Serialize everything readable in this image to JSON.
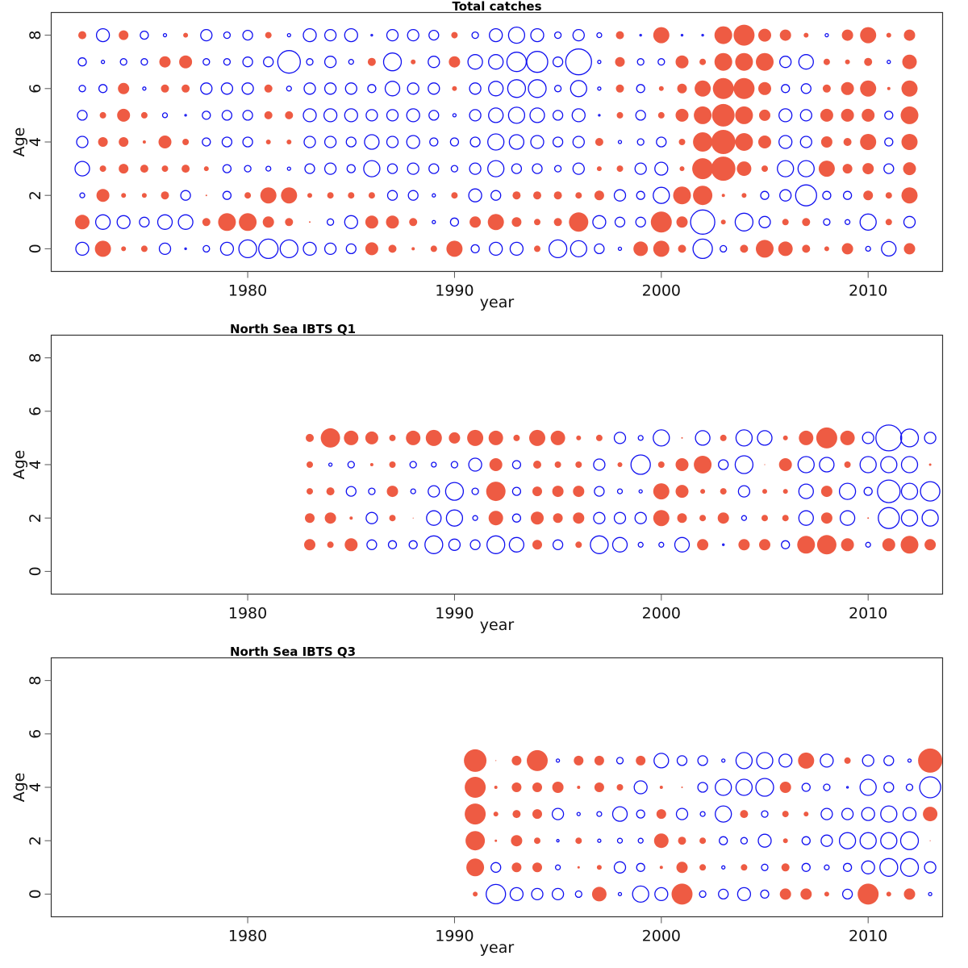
{
  "colors": {
    "positive": "#EE5B43",
    "negative": "#1010F0"
  },
  "chart_data": [
    {
      "type": "scatter",
      "subtype": "bubble",
      "title": "Total catches",
      "xlabel": "year",
      "ylabel": "Age",
      "xlim": [
        1970.5,
        2013.6
      ],
      "ylim": [
        -0.85,
        8.85
      ],
      "xticks": [
        1980,
        1990,
        2000,
        2010
      ],
      "yticks": [
        0,
        2,
        4,
        6,
        8
      ],
      "years": [
        1972,
        1973,
        1974,
        1975,
        1976,
        1977,
        1978,
        1979,
        1980,
        1981,
        1982,
        1983,
        1984,
        1985,
        1986,
        1987,
        1988,
        1989,
        1990,
        1991,
        1992,
        1993,
        1994,
        1995,
        1996,
        1997,
        1998,
        1999,
        2000,
        2001,
        2002,
        2003,
        2004,
        2005,
        2006,
        2007,
        2008,
        2009,
        2010,
        2011,
        2012
      ],
      "ages": [
        8,
        7,
        6,
        5,
        4,
        3,
        2,
        1,
        0
      ],
      "note": "signed residual magnitude; positive = filled red, negative = open blue",
      "values": [
        [
          5,
          -8,
          6,
          -5,
          -2,
          3,
          -7,
          -4,
          -6,
          4,
          -2,
          -8,
          -7,
          -8,
          -1,
          -7,
          -7,
          -6,
          4,
          -4,
          -8,
          -10,
          -8,
          -4,
          -7,
          -3,
          5,
          -1,
          10,
          -1,
          -1,
          11,
          13,
          8,
          7,
          3,
          -2,
          7,
          10,
          3,
          7
        ],
        [
          -5,
          -2,
          -4,
          -4,
          7,
          8,
          -4,
          -4,
          -6,
          -6,
          -14,
          -4,
          -7,
          -3,
          5,
          -11,
          3,
          -7,
          7,
          -9,
          -9,
          -12,
          -13,
          -6,
          -16,
          -2,
          6,
          -4,
          -4,
          8,
          4,
          11,
          11,
          11,
          -7,
          -9,
          4,
          3,
          5,
          -2,
          9
        ],
        [
          -4,
          -5,
          7,
          -2,
          5,
          5,
          -7,
          -7,
          -7,
          5,
          -3,
          -7,
          -7,
          -7,
          -5,
          -9,
          -7,
          -7,
          3,
          -7,
          -9,
          -11,
          -11,
          -4,
          -10,
          -2,
          5,
          -5,
          3,
          6,
          10,
          13,
          13,
          8,
          -5,
          -6,
          5,
          8,
          10,
          2,
          10
        ],
        [
          -6,
          4,
          8,
          4,
          -3,
          -1,
          -5,
          -6,
          -6,
          5,
          5,
          -8,
          -8,
          -8,
          -7,
          -7,
          -8,
          -6,
          -2,
          -7,
          -9,
          -10,
          -9,
          -6,
          -8,
          -1,
          4,
          -6,
          4,
          8,
          11,
          14,
          11,
          7,
          -8,
          -7,
          8,
          8,
          8,
          -5,
          11
        ],
        [
          -7,
          6,
          6,
          2,
          8,
          4,
          -5,
          -6,
          -6,
          3,
          3,
          -7,
          -7,
          -6,
          -9,
          -7,
          -8,
          -5,
          -5,
          -6,
          -10,
          -9,
          -8,
          -6,
          -7,
          5,
          -2,
          -4,
          -6,
          4,
          12,
          15,
          11,
          8,
          -8,
          -7,
          7,
          5,
          10,
          -5,
          10
        ],
        [
          -9,
          4,
          6,
          5,
          4,
          5,
          3,
          -5,
          -4,
          -3,
          -2,
          -6,
          -7,
          -5,
          -10,
          -6,
          -7,
          -6,
          -4,
          -7,
          -10,
          -6,
          -6,
          -4,
          -7,
          3,
          4,
          -7,
          -8,
          3,
          13,
          15,
          9,
          4,
          -10,
          -10,
          10,
          6,
          7,
          -6,
          8
        ],
        [
          -3,
          8,
          3,
          3,
          5,
          -6,
          1,
          -5,
          4,
          10,
          10,
          3,
          4,
          4,
          4,
          -6,
          -6,
          -2,
          4,
          -8,
          -6,
          5,
          5,
          5,
          4,
          6,
          -7,
          -5,
          -10,
          11,
          12,
          2,
          3,
          -5,
          -7,
          -13,
          -5,
          -5,
          6,
          4,
          10
        ],
        [
          9,
          -9,
          -8,
          -6,
          -9,
          -9,
          5,
          11,
          11,
          7,
          5,
          1,
          -4,
          -8,
          8,
          8,
          5,
          -2,
          -5,
          7,
          10,
          6,
          4,
          5,
          12,
          -8,
          -6,
          -6,
          13,
          7,
          -15,
          3,
          -11,
          -7,
          4,
          5,
          -4,
          -3,
          -10,
          4,
          -7
        ],
        [
          -8,
          10,
          3,
          4,
          -7,
          -1,
          -4,
          -8,
          -11,
          -12,
          -11,
          -8,
          -7,
          -6,
          8,
          5,
          2,
          4,
          10,
          -5,
          -8,
          -8,
          4,
          -11,
          -10,
          -6,
          -2,
          9,
          10,
          5,
          -12,
          -4,
          5,
          11,
          9,
          5,
          3,
          7,
          -3,
          -9,
          7
        ]
      ]
    },
    {
      "type": "scatter",
      "subtype": "bubble",
      "title": "North Sea IBTS Q1",
      "xlabel": "year",
      "ylabel": "Age",
      "xlim": [
        1970.5,
        2013.6
      ],
      "ylim": [
        -0.85,
        8.85
      ],
      "xticks": [
        1980,
        1990,
        2000,
        2010
      ],
      "yticks": [
        0,
        2,
        4,
        6,
        8
      ],
      "years": [
        1983,
        1984,
        1985,
        1986,
        1987,
        1988,
        1989,
        1990,
        1991,
        1992,
        1993,
        1994,
        1995,
        1996,
        1997,
        1998,
        1999,
        2000,
        2001,
        2002,
        2003,
        2004,
        2005,
        2006,
        2007,
        2008,
        2009,
        2010,
        2011,
        2012,
        2013
      ],
      "ages": [
        5,
        4,
        3,
        2,
        1
      ],
      "note": "signed residual magnitude; positive = filled red, negative = open blue",
      "values": [
        [
          5,
          12,
          9,
          8,
          4,
          9,
          10,
          7,
          10,
          9,
          4,
          10,
          9,
          3,
          4,
          -7,
          -3,
          -10,
          1,
          -9,
          4,
          -10,
          -9,
          3,
          9,
          13,
          9,
          -7,
          -16,
          -11,
          -7
        ],
        [
          4,
          -2,
          -4,
          2,
          4,
          -4,
          -3,
          -4,
          -8,
          8,
          -5,
          5,
          4,
          4,
          -7,
          3,
          -12,
          4,
          8,
          11,
          -6,
          -11,
          0.5,
          8,
          -10,
          -9,
          4,
          -10,
          -10,
          -10,
          1.5
        ],
        [
          4,
          5,
          -6,
          -4,
          7,
          -3,
          -7,
          -11,
          -4,
          12,
          -5,
          6,
          7,
          7,
          -6,
          -3,
          -2,
          10,
          8,
          3,
          4,
          -7,
          3,
          3,
          -9,
          7,
          -10,
          -5,
          -14,
          -10,
          -12
        ],
        [
          6,
          7,
          2,
          -7,
          4,
          0.5,
          -9,
          -10,
          -3,
          9,
          -5,
          8,
          6,
          7,
          -7,
          -7,
          -7,
          10,
          6,
          4,
          7,
          -3,
          4,
          4,
          -9,
          7,
          -9,
          1,
          -13,
          -10,
          -10
        ],
        [
          7,
          4,
          8,
          -6,
          -5,
          -5,
          -11,
          -7,
          -6,
          -11,
          -9,
          6,
          -6,
          4,
          -11,
          -9,
          -3,
          -3,
          -9,
          7,
          -1,
          7,
          7,
          -5,
          11,
          12,
          8,
          -3,
          8,
          11,
          7
        ]
      ]
    },
    {
      "type": "scatter",
      "subtype": "bubble",
      "title": "North Sea IBTS Q3",
      "xlabel": "year",
      "ylabel": "Age",
      "xlim": [
        1970.5,
        2013.6
      ],
      "ylim": [
        -0.85,
        8.85
      ],
      "xticks": [
        1980,
        1990,
        2000,
        2010
      ],
      "yticks": [
        0,
        2,
        4,
        6,
        8
      ],
      "years": [
        1991,
        1992,
        1993,
        1994,
        1995,
        1996,
        1997,
        1998,
        1999,
        2000,
        2001,
        2002,
        2003,
        2004,
        2005,
        2006,
        2007,
        2008,
        2009,
        2010,
        2011,
        2012,
        2013
      ],
      "ages": [
        5,
        4,
        3,
        2,
        1,
        0
      ],
      "note": "signed residual magnitude; positive = filled red, negative = open blue",
      "values": [
        [
          14,
          0.5,
          6,
          13,
          -2,
          6,
          6,
          -4,
          6,
          -9,
          -6,
          -6,
          -2,
          -10,
          -10,
          -8,
          10,
          -8,
          4,
          -7,
          -6,
          -2,
          15
        ],
        [
          13,
          2,
          6,
          6,
          7,
          2,
          6,
          4,
          -8,
          2,
          1,
          -6,
          -10,
          -10,
          -11,
          7,
          -5,
          -4,
          -1,
          -10,
          -6,
          -4,
          -13
        ],
        [
          13,
          3,
          5,
          6,
          -7,
          -2,
          -3,
          -9,
          -5,
          6,
          -7,
          -3,
          -10,
          5,
          -4,
          4,
          3,
          -7,
          -7,
          -8,
          -10,
          -8,
          9
        ],
        [
          12,
          1.5,
          7,
          4,
          -1.5,
          4,
          -2,
          -3,
          -3,
          9,
          5,
          4,
          -5,
          -4,
          -8,
          3,
          -5,
          -7,
          -10,
          -10,
          -10,
          -11,
          0.5
        ],
        [
          11,
          -6,
          6,
          6,
          -3,
          1.5,
          3,
          -7,
          -5,
          2,
          7,
          4,
          -2,
          4,
          -4,
          5,
          -5,
          -3,
          -5,
          -8,
          -11,
          -11,
          -7
        ],
        [
          3,
          -12,
          -8,
          -7,
          -7,
          -4,
          9,
          -2,
          -10,
          -8,
          13,
          -4,
          -6,
          -8,
          -5,
          7,
          7,
          3,
          -6,
          13,
          3,
          7,
          -2
        ]
      ]
    }
  ]
}
